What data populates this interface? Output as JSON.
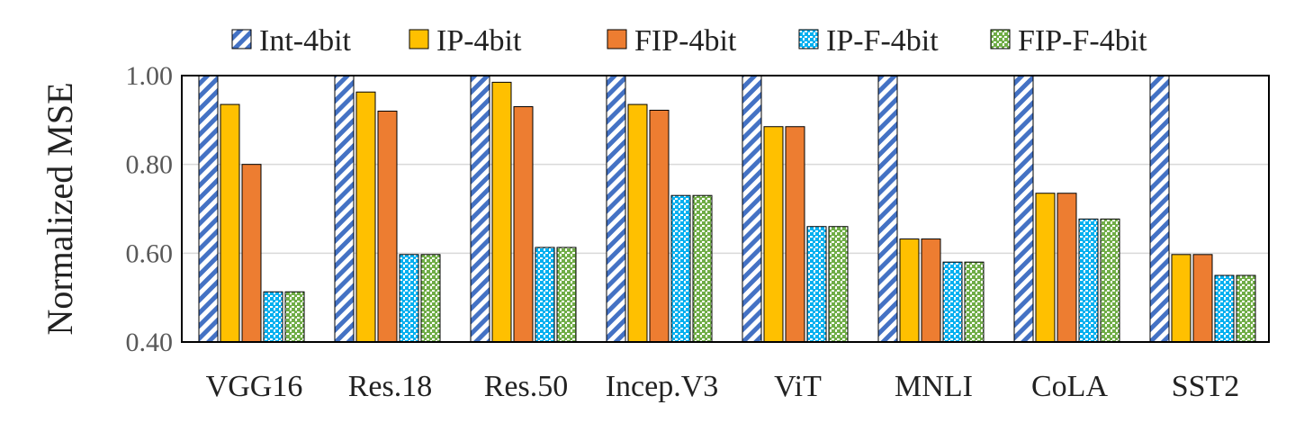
{
  "chart_data": {
    "type": "bar",
    "title": "",
    "xlabel": "",
    "ylabel": "Normalized MSE",
    "ylim": [
      0.4,
      1.0
    ],
    "yticks": [
      "0.40",
      "0.60",
      "0.80",
      "1.00"
    ],
    "ytick_values": [
      0.4,
      0.6,
      0.8,
      1.0
    ],
    "grid": true,
    "legend_position": "top",
    "categories": [
      "VGG16",
      "Res.18",
      "Res.50",
      "Incep.V3",
      "ViT",
      "MNLI",
      "CoLA",
      "SST2"
    ],
    "series": [
      {
        "name": "Int-4bit",
        "pattern": "diagonal-stripes",
        "color": "#4472C4",
        "values": [
          1.0,
          1.0,
          1.0,
          1.0,
          1.0,
          1.0,
          1.0,
          1.0
        ]
      },
      {
        "name": "IP-4bit",
        "pattern": "solid",
        "color": "#FFC000",
        "values": [
          0.935,
          0.963,
          0.985,
          0.935,
          0.885,
          0.632,
          0.735,
          0.597
        ]
      },
      {
        "name": "FIP-4bit",
        "pattern": "solid",
        "color": "#ED7D31",
        "values": [
          0.8,
          0.92,
          0.93,
          0.922,
          0.885,
          0.632,
          0.735,
          0.597
        ]
      },
      {
        "name": "IP-F-4bit",
        "pattern": "dots",
        "color": "#00B0F0",
        "values": [
          0.513,
          0.597,
          0.613,
          0.73,
          0.66,
          0.58,
          0.677,
          0.55
        ]
      },
      {
        "name": "FIP-F-4bit",
        "pattern": "dots",
        "color": "#70AD47",
        "values": [
          0.513,
          0.597,
          0.613,
          0.73,
          0.66,
          0.58,
          0.677,
          0.55
        ]
      }
    ]
  }
}
